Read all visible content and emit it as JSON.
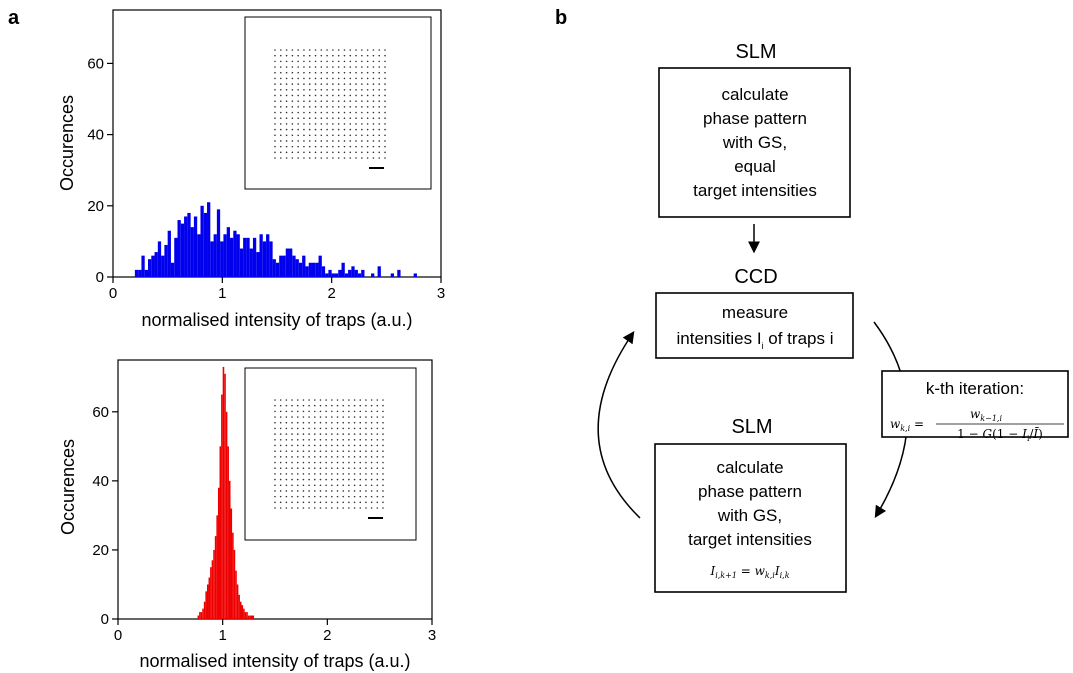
{
  "panel_a_label": "a",
  "panel_b_label": "b",
  "chart_data": [
    {
      "type": "bar",
      "color": "#0000ee",
      "xlabel": "normalised intensity of traps (a.u.)",
      "ylabel": "Occurences",
      "xlim": [
        0,
        3
      ],
      "ylim": [
        0,
        75
      ],
      "xticks": [
        "0",
        "1",
        "2",
        "3"
      ],
      "yticks": [
        "0",
        "20",
        "40",
        "60"
      ],
      "bin_width": 0.03,
      "x": [
        0.2,
        0.23,
        0.26,
        0.29,
        0.32,
        0.35,
        0.38,
        0.41,
        0.44,
        0.47,
        0.5,
        0.53,
        0.56,
        0.59,
        0.62,
        0.65,
        0.68,
        0.71,
        0.74,
        0.77,
        0.8,
        0.83,
        0.86,
        0.89,
        0.92,
        0.95,
        0.98,
        1.01,
        1.04,
        1.07,
        1.1,
        1.13,
        1.16,
        1.19,
        1.22,
        1.25,
        1.28,
        1.31,
        1.34,
        1.37,
        1.4,
        1.43,
        1.46,
        1.49,
        1.52,
        1.55,
        1.58,
        1.61,
        1.64,
        1.67,
        1.7,
        1.73,
        1.76,
        1.79,
        1.82,
        1.85,
        1.88,
        1.91,
        1.94,
        1.97,
        2.0,
        2.03,
        2.06,
        2.09,
        2.12,
        2.15,
        2.18,
        2.21,
        2.24,
        2.27,
        2.36,
        2.42,
        2.54,
        2.6,
        2.75
      ],
      "values": [
        2,
        2,
        6,
        2,
        5,
        6,
        7,
        10,
        6,
        9,
        13,
        4,
        11,
        16,
        15,
        17,
        18,
        14,
        17,
        12,
        20,
        18,
        21,
        10,
        12,
        19,
        10,
        12,
        14,
        11,
        13,
        12,
        8,
        11,
        11,
        8,
        11,
        7,
        12,
        10,
        12,
        10,
        5,
        4,
        6,
        6,
        8,
        8,
        6,
        5,
        4,
        6,
        3,
        4,
        4,
        4,
        6,
        3,
        1,
        2,
        1,
        1,
        2,
        4,
        1,
        2,
        3,
        2,
        1,
        2,
        1,
        3,
        1,
        2,
        1
      ]
    },
    {
      "type": "bar",
      "color": "#ee0000",
      "xlabel": "normalised intensity of traps (a.u.)",
      "ylabel": "Occurences",
      "xlim": [
        0,
        3
      ],
      "ylim": [
        0,
        75
      ],
      "xticks": [
        "0",
        "1",
        "2",
        "3"
      ],
      "yticks": [
        "0",
        "20",
        "40",
        "60"
      ],
      "bin_width": 0.015,
      "x": [
        0.76,
        0.775,
        0.79,
        0.805,
        0.82,
        0.835,
        0.85,
        0.865,
        0.88,
        0.895,
        0.91,
        0.925,
        0.94,
        0.955,
        0.97,
        0.985,
        1.0,
        1.015,
        1.03,
        1.045,
        1.06,
        1.075,
        1.09,
        1.105,
        1.12,
        1.135,
        1.15,
        1.165,
        1.18,
        1.195,
        1.21,
        1.225,
        1.24,
        1.255,
        1.27,
        1.285
      ],
      "values": [
        1,
        2,
        2,
        3,
        5,
        8,
        10,
        12,
        15,
        17,
        20,
        24,
        30,
        38,
        50,
        65,
        73,
        71,
        60,
        50,
        40,
        32,
        25,
        20,
        14,
        10,
        7,
        5,
        4,
        3,
        2,
        2,
        1,
        1,
        1,
        1
      ]
    }
  ],
  "flow": {
    "slm_top_title": "SLM",
    "slm_top_lines": [
      "calculate",
      "phase pattern",
      "with GS,",
      "equal",
      "target intensities"
    ],
    "ccd_title": "CCD",
    "ccd_line1": "measure",
    "ccd_line2_pre": "intensities I",
    "ccd_line2_sub": "i",
    "ccd_line2_post": " of traps i",
    "slm_bottom_title": "SLM",
    "slm_bottom_lines": [
      "calculate",
      "phase pattern",
      "with GS,",
      "target intensities"
    ],
    "slm_bottom_formula": "I_{i,k+1} = w_{k,i} I_{i,k}",
    "iteration_title": "k-th iteration:",
    "iteration_formula": "w_{k,i} = w_{k-1,i} / (1 - G(1 - I_i / Ī))"
  }
}
